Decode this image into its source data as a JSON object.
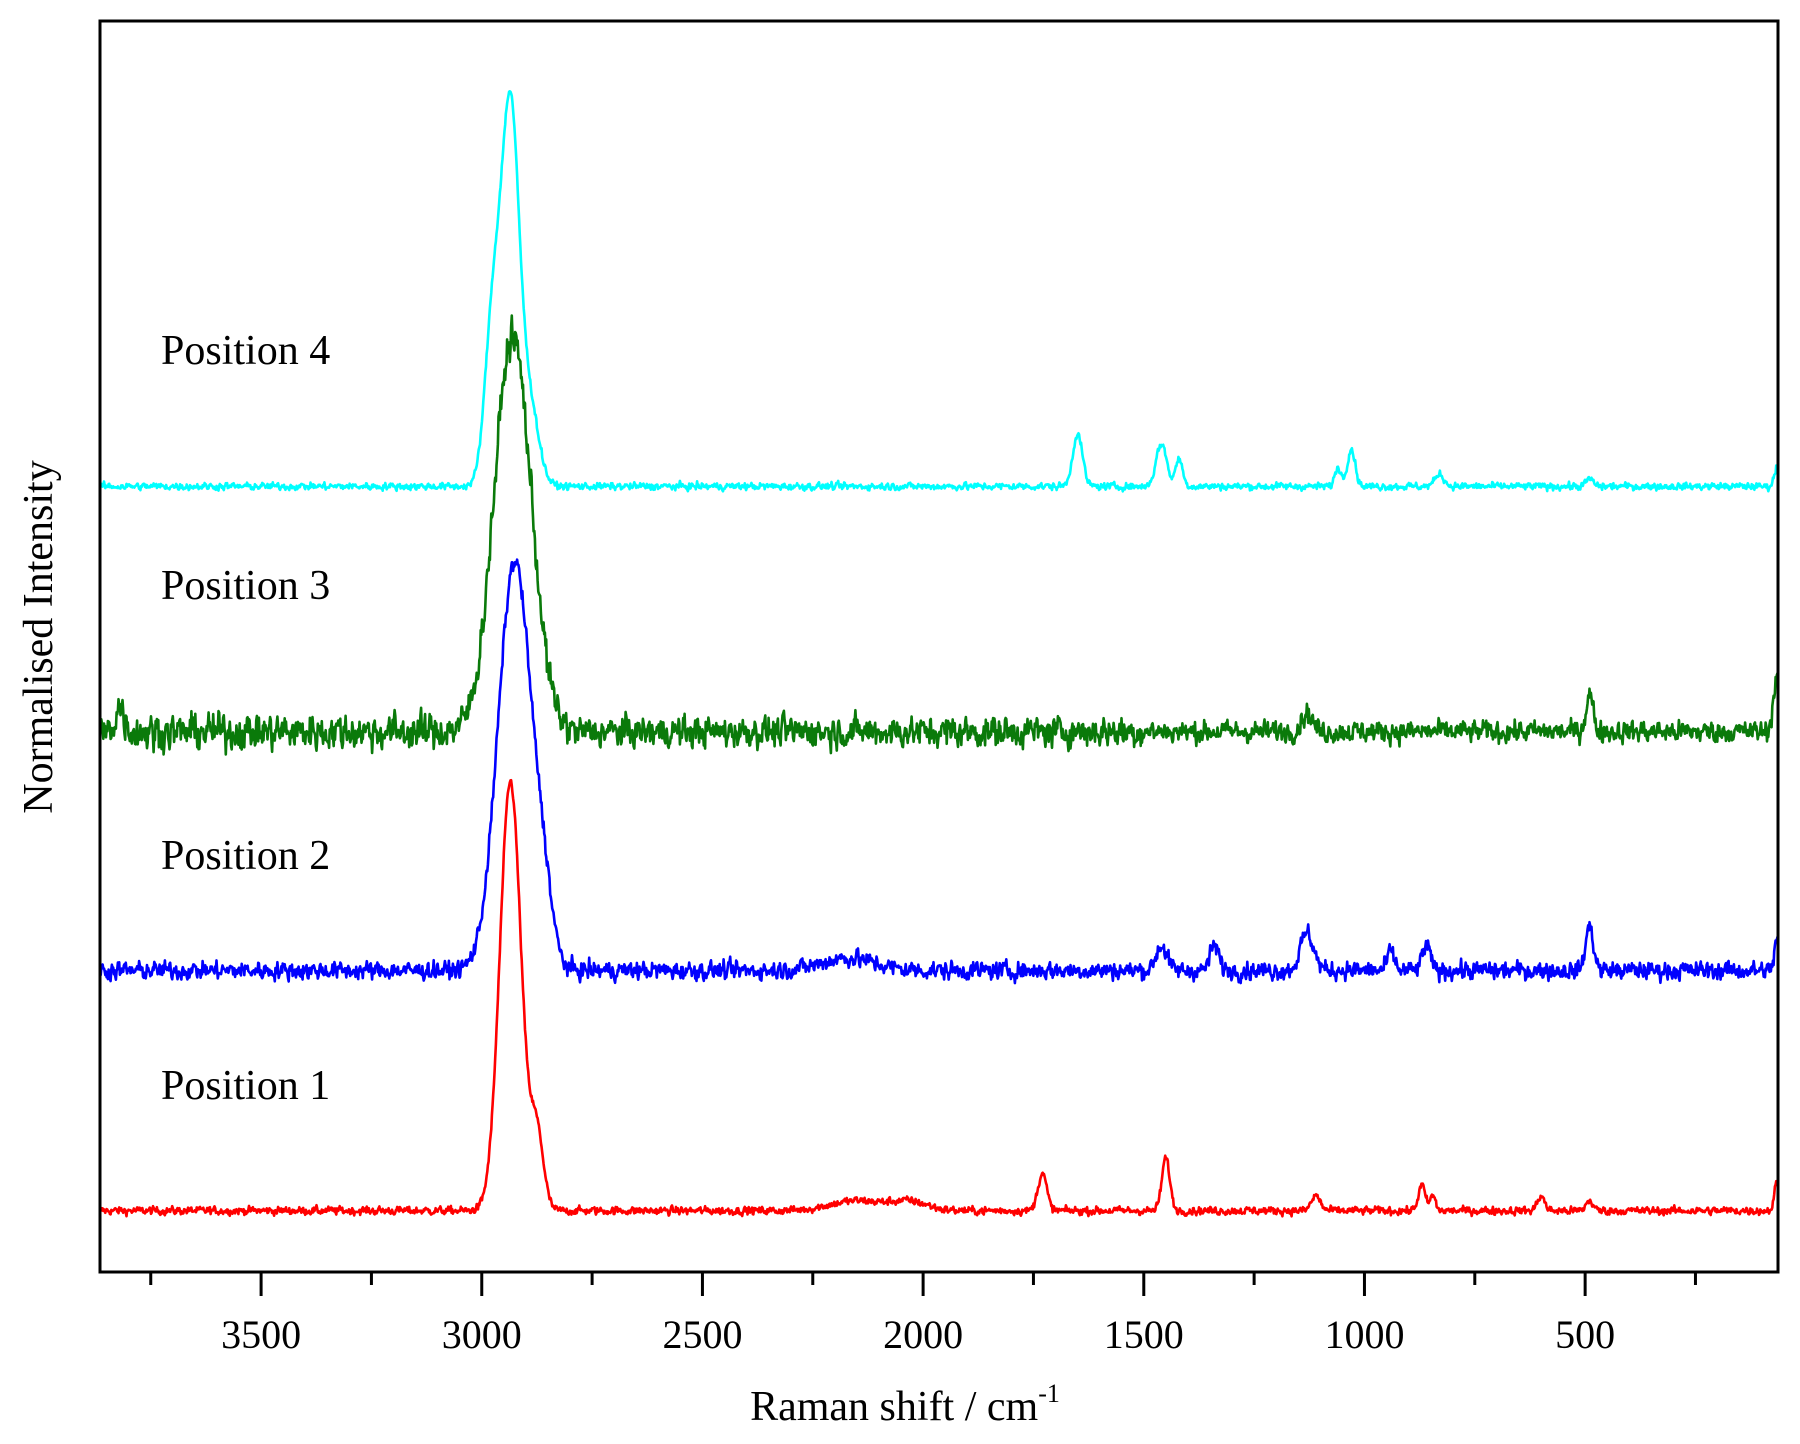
{
  "chart_data": {
    "type": "line",
    "title": "",
    "xlabel": "Raman shift / cm",
    "xlabel_superscript": "-1",
    "ylabel": "Normalised Intensity",
    "xlim": [
      3865,
      63
    ],
    "ylim": [
      0,
      100
    ],
    "x_ticks": [
      3500,
      3000,
      2500,
      2000,
      1500,
      1000,
      500
    ],
    "x_minor_ticks": [
      3750,
      3250,
      2750,
      2250,
      1750,
      1250,
      750,
      250
    ],
    "y_ticks": [],
    "grid": false,
    "legend": "none (series labelled inline)",
    "series": [
      {
        "name": "Position 1",
        "color": "#ff0000",
        "baseline": 4.9,
        "noise": 0.45,
        "peaks": [
          [
            2935,
            34.3,
            24
          ],
          [
            2875,
            6,
            15
          ],
          [
            1730,
            3,
            10
          ],
          [
            1450,
            4.2,
            9
          ],
          [
            1110,
            1.2,
            10
          ],
          [
            870,
            2,
            8
          ],
          [
            845,
            1.2,
            6
          ],
          [
            600,
            1.2,
            8
          ],
          [
            490,
            0.8,
            8
          ],
          [
            65,
            2.3,
            6
          ],
          [
            2150,
            0.8,
            60
          ],
          [
            2030,
            0.7,
            40
          ]
        ]
      },
      {
        "name": "Position 2",
        "color": "#0000ff",
        "baseline": 24.1,
        "noise": 1.0,
        "peaks": [
          [
            2925,
            32.7,
            38
          ],
          [
            2860,
            4,
            20
          ],
          [
            1460,
            2,
            12
          ],
          [
            1340,
            2,
            10
          ],
          [
            1130,
            3,
            15
          ],
          [
            940,
            1.5,
            8
          ],
          [
            860,
            2,
            9
          ],
          [
            490,
            3.5,
            9
          ],
          [
            65,
            2.5,
            6
          ],
          [
            2170,
            1,
            60
          ]
        ]
      },
      {
        "name": "Position 3",
        "color": "#0a7a0a",
        "baseline": 43.2,
        "noise": 2.0,
        "peaks": [
          [
            2930,
            31.6,
            42
          ],
          [
            3820,
            2,
            10
          ],
          [
            1130,
            1.5,
            12
          ],
          [
            490,
            3,
            8
          ],
          [
            65,
            4.5,
            8
          ]
        ]
      },
      {
        "name": "Position 4",
        "color": "#00ffff",
        "baseline": 62.8,
        "noise": 0.4,
        "peaks": [
          [
            2935,
            30,
            20
          ],
          [
            2975,
            13,
            18
          ],
          [
            2890,
            6,
            20
          ],
          [
            1650,
            4.2,
            11
          ],
          [
            1460,
            3.4,
            12
          ],
          [
            1420,
            2.2,
            8
          ],
          [
            1030,
            3,
            9
          ],
          [
            1060,
            1.5,
            7
          ],
          [
            830,
            1,
            10
          ],
          [
            490,
            0.6,
            8
          ],
          [
            65,
            1.6,
            6
          ]
        ]
      }
    ]
  }
}
